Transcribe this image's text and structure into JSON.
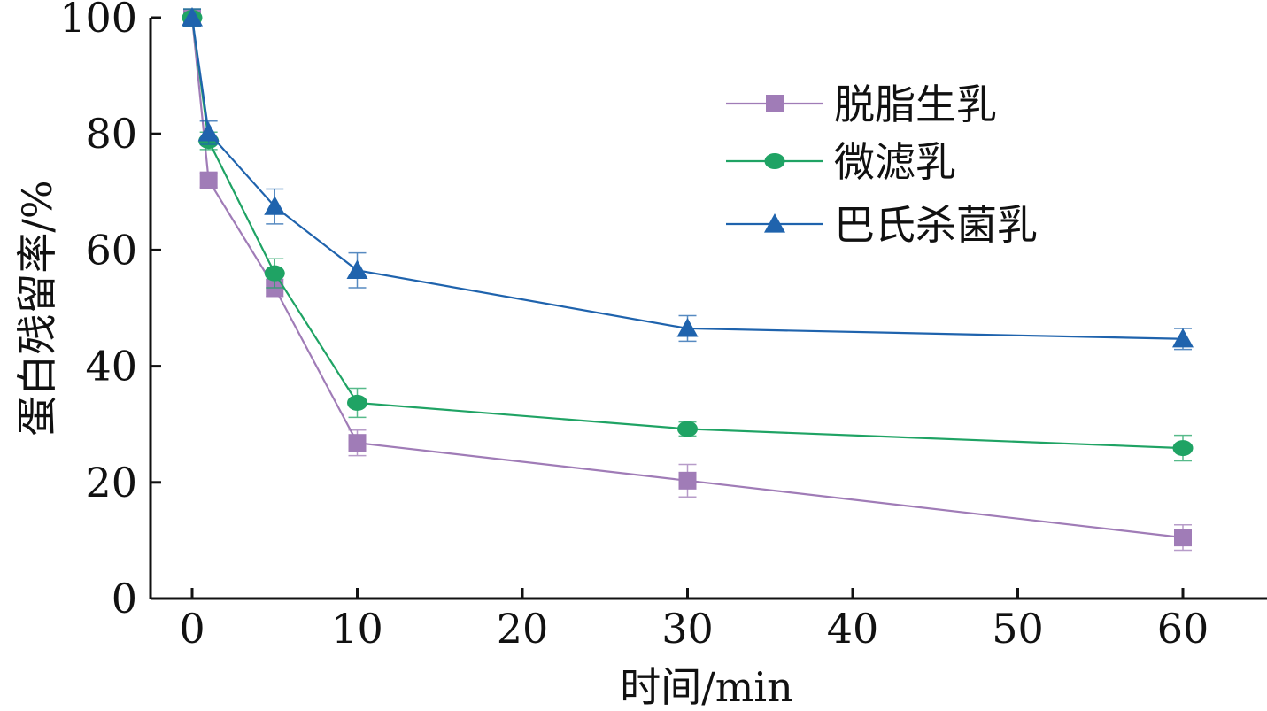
{
  "chart_data": {
    "type": "line",
    "title": "",
    "xlabel": "时间/min",
    "ylabel": "蛋白残留率/%",
    "xlim": [
      -2.5,
      65
    ],
    "ylim": [
      0,
      100
    ],
    "x_ticks": [
      0,
      10,
      20,
      30,
      40,
      50,
      60
    ],
    "y_ticks": [
      0,
      20,
      40,
      60,
      80,
      100
    ],
    "grid": false,
    "legend_position": "top-right",
    "series": [
      {
        "name": "脱脂生乳",
        "color": "#a07cb7",
        "marker": "square",
        "x": [
          0,
          1,
          5,
          10,
          30,
          60
        ],
        "y": [
          100,
          72,
          53.5,
          26.8,
          20.3,
          10.5
        ],
        "err": [
          1.5,
          1.2,
          1.5,
          2.2,
          2.8,
          2.2
        ]
      },
      {
        "name": "微滤乳",
        "color": "#1fa364",
        "marker": "circle",
        "x": [
          0,
          1,
          5,
          10,
          30,
          60
        ],
        "y": [
          100,
          78.8,
          56,
          33.7,
          29.2,
          25.9
        ],
        "err": [
          1.5,
          1.5,
          2.5,
          2.5,
          1.2,
          2.2
        ]
      },
      {
        "name": "巴氏杀菌乳",
        "color": "#1f63ad",
        "marker": "triangle",
        "x": [
          0,
          1,
          5,
          10,
          30,
          60
        ],
        "y": [
          100,
          80.2,
          67.5,
          56.5,
          46.5,
          44.7
        ],
        "err": [
          1.5,
          2.0,
          3.0,
          3.0,
          2.2,
          1.8
        ]
      }
    ]
  }
}
